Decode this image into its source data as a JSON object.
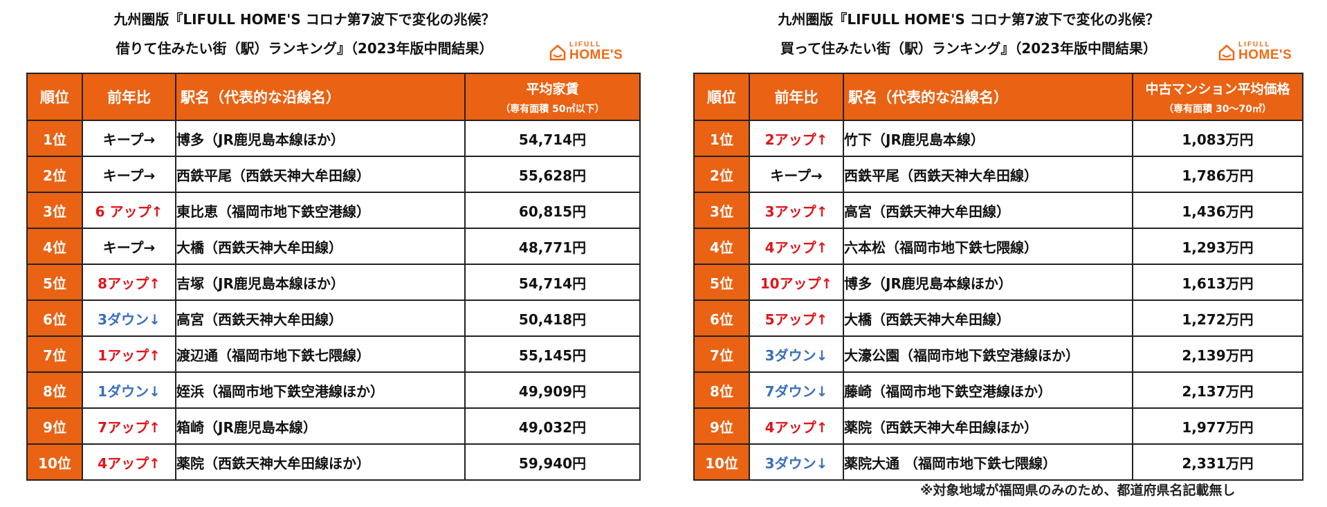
{
  "left": {
    "title_line1": "九州圏版『LIFULL HOME'S コロナ第7波下で変化の兆候？",
    "title_line2": "借りて住みたい街（駅）ランキング』（2023年版中間結果）",
    "logo": {
      "top": "LIFULL",
      "bottom": "HOME'S",
      "icon": "house-icon",
      "color": "#f06a15"
    },
    "headers": {
      "rank": "順位",
      "change": "前年比",
      "station": "駅名（代表的な沿線名）",
      "price_main": "平均家賃",
      "price_sub": "（専有面積 50㎡以下）"
    },
    "rows": [
      {
        "rank": "1位",
        "change": "キープ→",
        "dir": "keep",
        "station": "博多（JR鹿児島本線ほか）",
        "price": "54,714円"
      },
      {
        "rank": "2位",
        "change": "キープ→",
        "dir": "keep",
        "station": "西鉄平尾（西鉄天神大牟田線）",
        "price": "55,628円"
      },
      {
        "rank": "3位",
        "change": "6 アップ↑",
        "dir": "up",
        "station": "東比恵（福岡市地下鉄空港線）",
        "price": "60,815円"
      },
      {
        "rank": "4位",
        "change": "キープ→",
        "dir": "keep",
        "station": "大橋（西鉄天神大牟田線）",
        "price": "48,771円"
      },
      {
        "rank": "5位",
        "change": "8アップ↑",
        "dir": "up",
        "station": "吉塚（JR鹿児島本線ほか）",
        "price": "54,714円"
      },
      {
        "rank": "6位",
        "change": "3ダウン↓",
        "dir": "down",
        "station": "高宮（西鉄天神大牟田線）",
        "price": "50,418円"
      },
      {
        "rank": "7位",
        "change": "1アップ↑",
        "dir": "up",
        "station": "渡辺通（福岡市地下鉄七隈線）",
        "price": "55,145円"
      },
      {
        "rank": "8位",
        "change": "1ダウン↓",
        "dir": "down",
        "station": "姪浜（福岡市地下鉄空港線ほか）",
        "price": "49,909円"
      },
      {
        "rank": "9位",
        "change": "7アップ↑",
        "dir": "up",
        "station": "箱崎（JR鹿児島本線）",
        "price": "49,032円"
      },
      {
        "rank": "10位",
        "change": "4アップ↑",
        "dir": "up",
        "station": "薬院（西鉄天神大牟田線ほか）",
        "price": "59,940円"
      }
    ]
  },
  "right": {
    "title_line1": "九州圏版『LIFULL HOME'S コロナ第7波下で変化の兆候？",
    "title_line2": "買って住みたい街（駅）ランキング』（2023年版中間結果）",
    "logo": {
      "top": "LIFULL",
      "bottom": "HOME'S",
      "icon": "house-icon",
      "color": "#f06a15"
    },
    "headers": {
      "rank": "順位",
      "change": "前年比",
      "station": "駅名（代表的な沿線名）",
      "price_main": "中古マンション平均価格",
      "price_sub": "（専有面積 30～70㎡）"
    },
    "rows": [
      {
        "rank": "1位",
        "change": "2アップ↑",
        "dir": "up",
        "station": "竹下（JR鹿児島本線）",
        "price": "1,083万円"
      },
      {
        "rank": "2位",
        "change": "キープ→",
        "dir": "keep",
        "station": "西鉄平尾（西鉄天神大牟田線）",
        "price": "1,786万円"
      },
      {
        "rank": "3位",
        "change": "3アップ↑",
        "dir": "up",
        "station": "高宮（西鉄天神大牟田線）",
        "price": "1,436万円"
      },
      {
        "rank": "4位",
        "change": "4アップ↑",
        "dir": "up",
        "station": "六本松（福岡市地下鉄七隈線）",
        "price": "1,293万円"
      },
      {
        "rank": "5位",
        "change": "10アップ↑",
        "dir": "up",
        "station": "博多（JR鹿児島本線ほか）",
        "price": "1,613万円"
      },
      {
        "rank": "6位",
        "change": "5アップ↑",
        "dir": "up",
        "station": "大橋（西鉄天神大牟田線）",
        "price": "1,272万円"
      },
      {
        "rank": "7位",
        "change": "3ダウン↓",
        "dir": "down",
        "station": "大濠公園（福岡市地下鉄空港線ほか）",
        "price": "2,139万円"
      },
      {
        "rank": "8位",
        "change": "7ダウン↓",
        "dir": "down",
        "station": "藤崎（福岡市地下鉄空港線ほか）",
        "price": "2,137万円"
      },
      {
        "rank": "9位",
        "change": "4アップ↑",
        "dir": "up",
        "station": "薬院（西鉄天神大牟田線ほか）",
        "price": "1,977万円"
      },
      {
        "rank": "10位",
        "change": "3ダウン↓",
        "dir": "down",
        "station": "薬院大通 （福岡市地下鉄七隈線）",
        "price": "2,331万円"
      }
    ],
    "note": "※対象地域が福岡県のみのため、都道府県名記載無し"
  }
}
